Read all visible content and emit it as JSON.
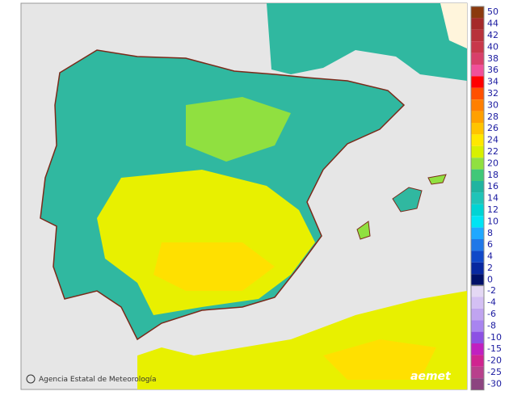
{
  "legend": {
    "warm": [
      {
        "label": "50",
        "color": "#8b3a0e"
      },
      {
        "label": "44",
        "color": "#a52a2a"
      },
      {
        "label": "42",
        "color": "#b8323a"
      },
      {
        "label": "40",
        "color": "#c8384a"
      },
      {
        "label": "38",
        "color": "#d8406a"
      },
      {
        "label": "36",
        "color": "#f0509a"
      },
      {
        "label": "34",
        "color": "#ff0000"
      },
      {
        "label": "32",
        "color": "#ff5000"
      },
      {
        "label": "30",
        "color": "#ff7f00"
      },
      {
        "label": "28",
        "color": "#ffa000"
      },
      {
        "label": "26",
        "color": "#ffc400"
      },
      {
        "label": "24",
        "color": "#ffe800"
      },
      {
        "label": "22",
        "color": "#d8f000"
      },
      {
        "label": "20",
        "color": "#90e040"
      },
      {
        "label": "18",
        "color": "#40c878"
      },
      {
        "label": "16",
        "color": "#20b4a0"
      },
      {
        "label": "14",
        "color": "#20c4b8"
      },
      {
        "label": "12",
        "color": "#00d4d4"
      },
      {
        "label": "10",
        "color": "#00e4f4"
      },
      {
        "label": "8",
        "color": "#20a8ff"
      },
      {
        "label": "6",
        "color": "#2078e8"
      },
      {
        "label": "4",
        "color": "#1048c8"
      },
      {
        "label": "2",
        "color": "#0828a0"
      },
      {
        "label": "0",
        "color": "#001068"
      }
    ],
    "cold": [
      {
        "label": "-2",
        "color": "#e4d8f4"
      },
      {
        "label": "-4",
        "color": "#d4c0f4"
      },
      {
        "label": "-6",
        "color": "#c0a4f0"
      },
      {
        "label": "-8",
        "color": "#a884f0"
      },
      {
        "label": "-10",
        "color": "#8c50e4"
      },
      {
        "label": "-15",
        "color": "#c020c0"
      },
      {
        "label": "-20",
        "color": "#d02490"
      },
      {
        "label": "-25",
        "color": "#b8408c"
      },
      {
        "label": "-30",
        "color": "#8c4480"
      }
    ]
  },
  "footer": {
    "agency": "Agencia Estatal de Meteorología",
    "logo": "aemet"
  }
}
